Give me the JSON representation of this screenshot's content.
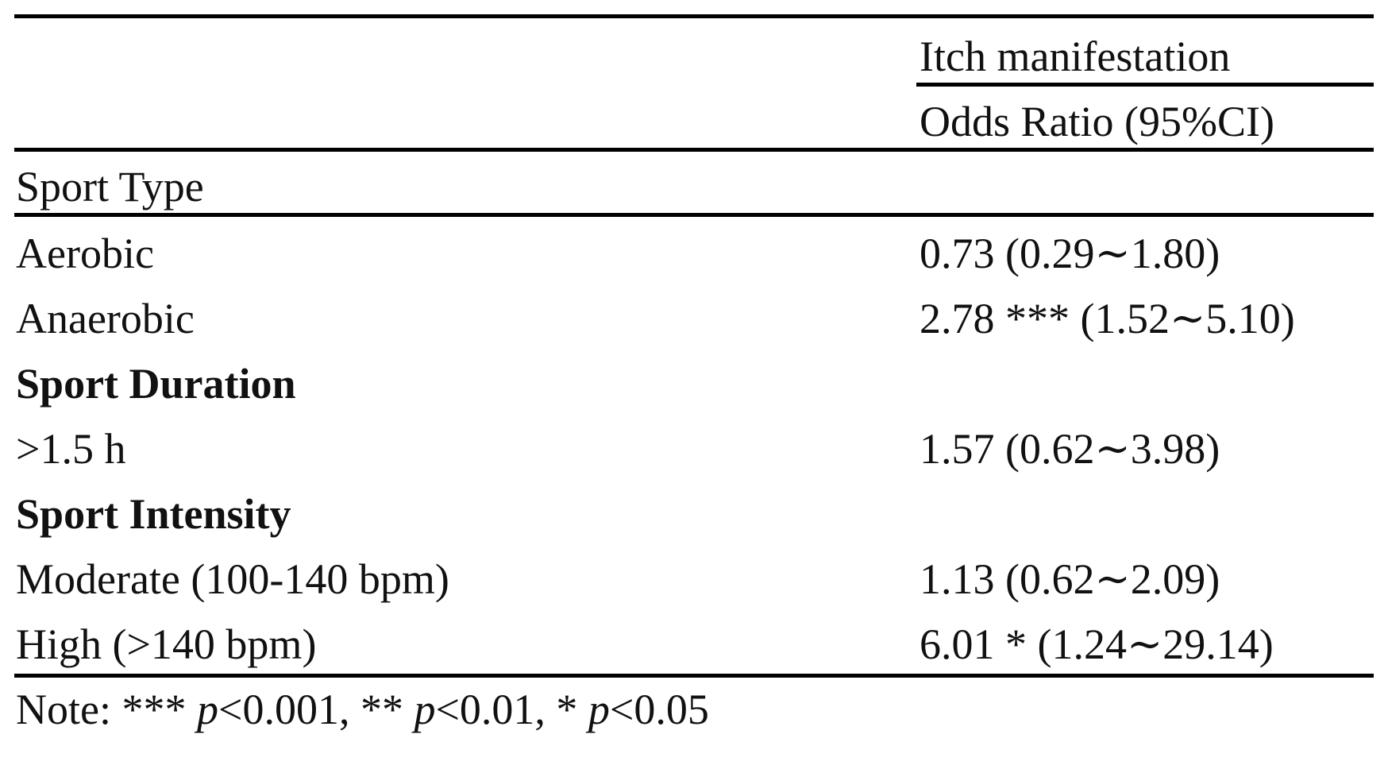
{
  "header": {
    "group_label": "Itch manifestation",
    "col_label": "Odds Ratio (95%CI)"
  },
  "rows": [
    {
      "label": "Sport Type",
      "value": "",
      "bold": false
    },
    {
      "label": "Aerobic",
      "value": "0.73 (0.29∼1.80)",
      "bold": false
    },
    {
      "label": "Anaerobic",
      "value": "2.78 *** (1.52∼5.10)",
      "bold": false
    },
    {
      "label": "Sport Duration",
      "value": "",
      "bold": true
    },
    {
      "label": ">1.5 h",
      "value": "1.57 (0.62∼3.98)",
      "bold": false
    },
    {
      "label": "Sport Intensity",
      "value": "",
      "bold": true
    },
    {
      "label": "Moderate (100-140 bpm)",
      "value": "1.13 (0.62∼2.09)",
      "bold": false
    },
    {
      "label": "High (>140 bpm)",
      "value": "6.01 * (1.24∼29.14)",
      "bold": false
    }
  ],
  "note": {
    "prefix": "Note: *** ",
    "p1": "p",
    "t1": "<0.001, ** ",
    "p2": "p",
    "t2": "<0.01, * ",
    "p3": "p",
    "t3": "<0.05"
  }
}
